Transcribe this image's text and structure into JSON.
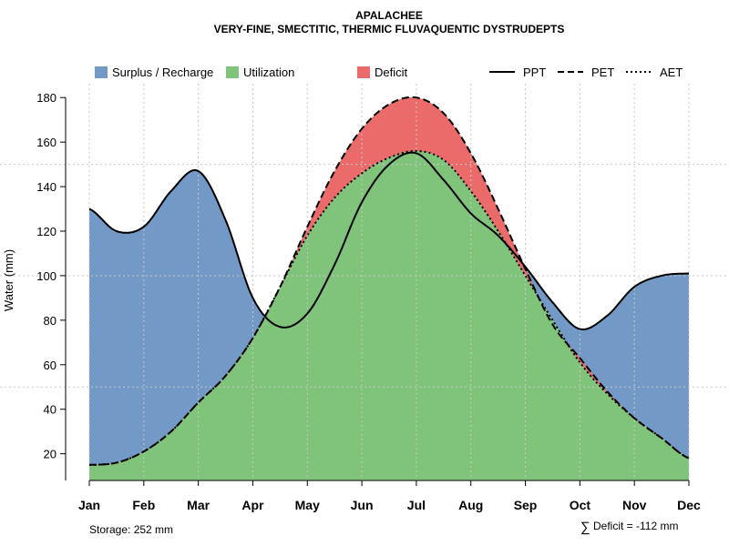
{
  "chart_data": {
    "type": "area",
    "title": "APALACHEE",
    "subtitle": "VERY-FINE, SMECTITIC, THERMIC FLUVAQUENTIC DYSTRUDEPTS",
    "ylabel": "Water (mm)",
    "xlabel": "",
    "ylim": [
      8,
      185
    ],
    "yticks": [
      20,
      40,
      60,
      80,
      100,
      120,
      140,
      160,
      180
    ],
    "months": [
      "Jan",
      "Feb",
      "Mar",
      "Apr",
      "May",
      "Jun",
      "Jul",
      "Aug",
      "Sep",
      "Oct",
      "Nov",
      "Dec"
    ],
    "x": [
      1,
      1.5,
      2,
      2.5,
      3,
      3.5,
      4,
      4.5,
      5,
      5.5,
      6,
      6.5,
      7,
      7.5,
      8,
      8.5,
      9,
      9.5,
      10,
      10.5,
      11,
      11.5,
      12
    ],
    "series": [
      {
        "name": "PPT",
        "values": [
          130,
          120,
          122,
          138,
          147,
          125,
          90,
          77,
          83,
          105,
          133,
          150,
          155,
          143,
          128,
          118,
          104,
          88,
          76,
          82,
          95,
          100,
          101
        ]
      },
      {
        "name": "PET",
        "values": [
          15,
          16,
          21,
          30,
          43,
          55,
          72,
          95,
          122,
          147,
          166,
          177,
          180,
          173,
          155,
          130,
          103,
          78,
          63,
          48,
          36,
          27,
          18
        ]
      },
      {
        "name": "AET",
        "values": [
          15,
          16,
          21,
          30,
          43,
          55,
          72,
          95,
          118,
          135,
          146,
          153,
          156,
          152,
          138,
          120,
          100,
          80,
          61,
          47,
          36,
          27,
          18
        ]
      }
    ],
    "areas": [
      {
        "name": "Surplus / Recharge",
        "color": "#7399c6"
      },
      {
        "name": "Utilization",
        "color": "#80c47c"
      },
      {
        "name": "Deficit",
        "color": "#eb6b6b"
      }
    ],
    "legend": {
      "fills": [
        "Surplus / Recharge",
        "Utilization",
        "Deficit"
      ],
      "lines": [
        "PPT",
        "PET",
        "AET"
      ]
    },
    "grid": true,
    "annotations": {
      "storage": "Storage: 252 mm",
      "deficit_symbol": "∑",
      "deficit": "Deficit = -112 mm"
    }
  }
}
